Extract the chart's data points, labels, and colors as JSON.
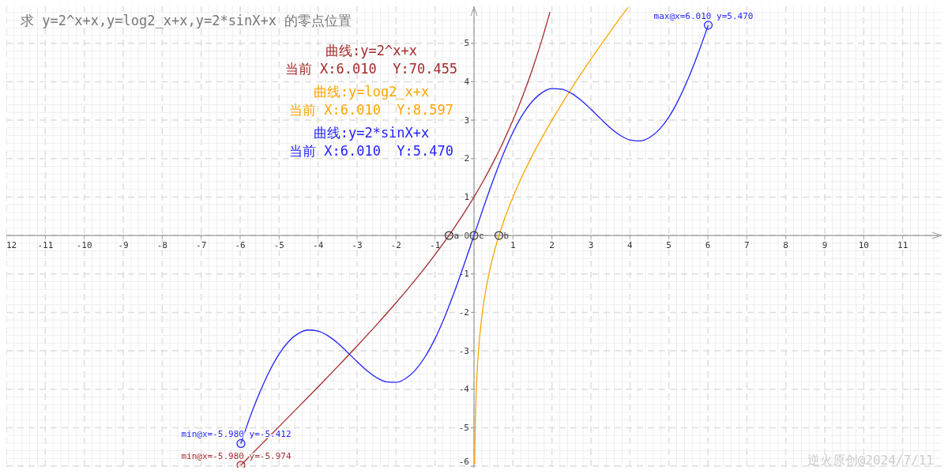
{
  "chart_data": {
    "type": "line",
    "title": "求 y=2^x+x,y=log2_x+x,y=2*sinX+x 的零点位置",
    "xlim": [
      -12,
      12
    ],
    "ylim": [
      -6.04,
      5.96
    ],
    "xticks": [
      {
        "value": -12,
        "label": "12"
      },
      -11,
      -10,
      -9,
      -8,
      -7,
      -6,
      -5,
      -4,
      -3,
      -2,
      -1,
      {
        "value": 0,
        "label": null
      },
      1,
      2,
      3,
      4,
      5,
      6,
      7,
      8,
      9,
      10,
      11
    ],
    "yticks": [
      -6,
      -5,
      -4,
      -3,
      -2,
      -1,
      0,
      1,
      2,
      3,
      4,
      5
    ],
    "grid": true,
    "legend": "top",
    "series": [
      {
        "name": "曲线:y=2^x+x",
        "color": "#a52a2a",
        "x": [
          -5.98,
          -5.5,
          -5,
          -4.5,
          -4,
          -3.5,
          -3,
          -2.5,
          -2,
          -1.5,
          -1,
          -0.5,
          0,
          0.25,
          0.5,
          0.75,
          1,
          1.25,
          1.5,
          1.75,
          1.95
        ],
        "values": [
          -5.974,
          -5.478,
          -4.969,
          -4.456,
          -3.938,
          -3.412,
          -2.875,
          -2.323,
          -1.75,
          -1.146,
          -0.5,
          0.207,
          1,
          1.439,
          1.914,
          2.432,
          3,
          3.628,
          4.328,
          5.114,
          5.814
        ]
      },
      {
        "name": "曲线:y=log2_x+x",
        "color": "#ffa500",
        "x": [
          0.016,
          0.02,
          0.03,
          0.05,
          0.075,
          0.1,
          0.15,
          0.2,
          0.3,
          0.4,
          0.5,
          0.75,
          1,
          1.25,
          1.5,
          1.75,
          2,
          2.5,
          3,
          3.5,
          3.95
        ],
        "values": [
          -5.95,
          -5.624,
          -5.029,
          -4.272,
          -3.662,
          -3.222,
          -2.587,
          -2.122,
          -1.437,
          -0.922,
          -0.5,
          0.335,
          1,
          1.572,
          2.085,
          2.557,
          3,
          3.822,
          4.585,
          5.307,
          5.932
        ]
      },
      {
        "name": "曲线:y=2*sinX+x",
        "color": "#2222ff",
        "x": [
          -5.98,
          -5.75,
          -5.5,
          -5.25,
          -5,
          -4.75,
          -4.5,
          -4.25,
          -4,
          -3.75,
          -3.5,
          -3.25,
          -3,
          -2.75,
          -2.5,
          -2.25,
          -2,
          -1.75,
          -1.5,
          -1.25,
          -1,
          -0.75,
          -0.5,
          -0.25,
          0,
          0.25,
          0.5,
          0.75,
          1,
          1.25,
          1.5,
          1.75,
          2,
          2.25,
          2.5,
          2.75,
          3,
          3.25,
          3.5,
          3.75,
          4,
          4.25,
          4.5,
          4.75,
          5,
          5.25,
          5.5,
          5.75,
          6.01
        ],
        "values": [
          -5.412,
          -4.733,
          -4.089,
          -3.532,
          -3.082,
          -2.751,
          -2.545,
          -2.46,
          -2.486,
          -2.607,
          -2.798,
          -3.034,
          -3.282,
          -3.513,
          -3.697,
          -3.806,
          -3.819,
          -3.718,
          -3.495,
          -3.148,
          -2.683,
          -2.113,
          -1.459,
          -0.745,
          0,
          0.745,
          1.459,
          2.113,
          2.683,
          3.148,
          3.495,
          3.718,
          3.819,
          3.806,
          3.697,
          3.513,
          3.282,
          3.034,
          2.798,
          2.607,
          2.486,
          2.46,
          2.545,
          2.751,
          3.082,
          3.532,
          4.089,
          4.733,
          5.47
        ]
      },
      {
        "type": "scatter",
        "marker": "circle",
        "x": [
          -0.641,
          0.641,
          0,
          -5.98,
          -5.98,
          6.01
        ],
        "values": [
          0,
          0,
          0,
          -5.412,
          -5.974,
          5.47
        ],
        "colors": [
          "#333333",
          "#333333",
          "#333333",
          "#2222ff",
          "#a52a2a",
          "#2222ff"
        ]
      }
    ],
    "annotations": [
      {
        "text": "a",
        "x": -0.641,
        "y": 0
      },
      {
        "text": "b",
        "x": 0.641,
        "y": 0
      },
      {
        "text": "c",
        "x": 0,
        "y": 0
      },
      {
        "text": "min@x=-5.980 y=-5.412",
        "x": -5.98,
        "y": -5.412
      },
      {
        "text": "min@x=-5.980 y=-5.974",
        "x": -5.98,
        "y": -5.974
      },
      {
        "text": "max@x=6.010 y=5.470",
        "x": 6.01,
        "y": 5.47
      },
      "当前 X:6.010  Y:70.455",
      "当前 X:6.010  Y:8.597",
      "当前 X:6.010  Y:5.470",
      "逆火原创@2024/7/11"
    ]
  }
}
